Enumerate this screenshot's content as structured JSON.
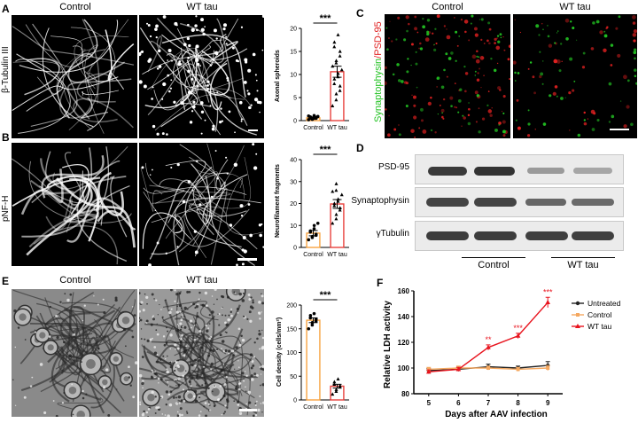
{
  "panels": {
    "A": {
      "letter": "A",
      "headers": [
        "Control",
        "WT tau"
      ],
      "stain": "β-Tubulin III",
      "chart": {
        "ylabel": "Axonal spheroids",
        "categories": [
          "Control",
          "WT tau"
        ],
        "sig": "***"
      }
    },
    "B": {
      "letter": "B",
      "stain": "pNF-H",
      "chart": {
        "ylabel": "Neurofilament fragments",
        "categories": [
          "Control",
          "WT tau"
        ],
        "sig": "***"
      }
    },
    "C": {
      "letter": "C",
      "headers": [
        "Control",
        "WT tau"
      ],
      "label_green": "Synaptophysin",
      "label_red": "PSD-95"
    },
    "D": {
      "letter": "D",
      "rows": [
        "PSD-95",
        "Synaptophysin",
        "γTubulin"
      ],
      "groups": [
        "Control",
        "WT tau"
      ]
    },
    "E": {
      "letter": "E",
      "headers": [
        "Control",
        "WT tau"
      ],
      "chart": {
        "ylabel": "Cell density (cells/mm²)",
        "categories": [
          "Control",
          "WT tau"
        ],
        "sig": "***"
      }
    },
    "F": {
      "letter": "F",
      "chart": {
        "xlabel": "Days after AAV infection",
        "ylabel": "Relative LDH activity",
        "legend": [
          "Untreated",
          "Control",
          "WT tau"
        ],
        "sig": [
          "**",
          "***",
          "***"
        ]
      }
    }
  },
  "colors": {
    "control_bar": "#f7a341",
    "wt_bar": "#e8413d",
    "wt_line": "#e8141e",
    "control_line": "#f5a860",
    "untreated_line": "#222222",
    "green": "#22c222",
    "red": "#e02020"
  },
  "chart_data": [
    {
      "type": "bar",
      "id": "A",
      "title": "",
      "xlabel": "",
      "ylabel": "Axonal spheroids",
      "categories": [
        "Control",
        "WT tau"
      ],
      "values": [
        0.6,
        10.6
      ],
      "errors": [
        0.2,
        1.2
      ],
      "ylim": [
        0,
        20
      ],
      "yticks": [
        0,
        5,
        10,
        15,
        20
      ],
      "points": [
        [
          0.2,
          0.3,
          0.4,
          0.5,
          0.6,
          0.6,
          0.7,
          0.8,
          0.5,
          0.9,
          1.0,
          0.4,
          0.3,
          0.7,
          0.6,
          0.8,
          0.5,
          1.1
        ],
        [
          3.2,
          4.5,
          5.8,
          6.5,
          7.5,
          8.0,
          9.0,
          9.5,
          10.2,
          11.0,
          11.8,
          12.5,
          13.0,
          14.0,
          15.0,
          16.0,
          17.0,
          18.6
        ]
      ],
      "sig": "***"
    },
    {
      "type": "bar",
      "id": "B",
      "title": "",
      "xlabel": "",
      "ylabel": "Neurofilament fragments",
      "categories": [
        "Control",
        "WT tau"
      ],
      "values": [
        6.5,
        19.8
      ],
      "errors": [
        1.2,
        2.0
      ],
      "ylim": [
        0,
        40
      ],
      "yticks": [
        0,
        10,
        20,
        30,
        40
      ],
      "points": [
        [
          3.5,
          4.5,
          5.0,
          5.5,
          6.0,
          7.0,
          7.5,
          8.5,
          10.0,
          11.0
        ],
        [
          11.0,
          13.0,
          15.0,
          17.0,
          18.0,
          19.0,
          20.0,
          21.0,
          22.0,
          24.0,
          25.5,
          26.0,
          29.0
        ]
      ],
      "sig": "***"
    },
    {
      "type": "bar",
      "id": "E",
      "title": "",
      "xlabel": "",
      "ylabel": "Cell density (cells/mm²)",
      "categories": [
        "Control",
        "WT tau"
      ],
      "values": [
        168,
        29
      ],
      "errors": [
        5,
        4
      ],
      "ylim": [
        0,
        200
      ],
      "yticks": [
        0,
        50,
        100,
        150,
        200
      ],
      "points": [
        [
          150,
          158,
          163,
          166,
          170,
          173,
          178,
          182
        ],
        [
          12,
          18,
          22,
          27,
          30,
          33,
          38,
          44
        ]
      ],
      "sig": "***"
    },
    {
      "type": "line",
      "id": "F",
      "title": "",
      "xlabel": "Days after AAV infection",
      "ylabel": "Relative LDH activity",
      "x": [
        5,
        6,
        7,
        8,
        9
      ],
      "xlim": [
        4.5,
        9.5
      ],
      "ylim": [
        80,
        160
      ],
      "yticks": [
        80,
        100,
        120,
        140,
        160
      ],
      "series": [
        {
          "name": "Untreated",
          "values": [
            98,
            99,
            101,
            100,
            102
          ],
          "errors": [
            1.5,
            1.5,
            2,
            1.5,
            3
          ]
        },
        {
          "name": "Control",
          "values": [
            99,
            100,
            100,
            99,
            100
          ],
          "errors": [
            1.5,
            1.5,
            1.5,
            1.5,
            2
          ]
        },
        {
          "name": "WT tau",
          "values": [
            97,
            99,
            116,
            125,
            151
          ],
          "errors": [
            1.5,
            1.5,
            2,
            2,
            4
          ]
        }
      ],
      "sig": [
        {
          "x": 7,
          "label": "**"
        },
        {
          "x": 8,
          "label": "***"
        },
        {
          "x": 9,
          "label": "***"
        }
      ],
      "legend": "top-right"
    }
  ]
}
